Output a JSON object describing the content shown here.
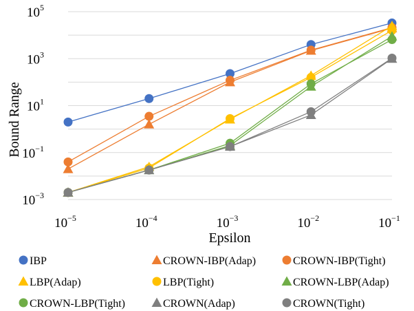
{
  "chart_data": {
    "type": "line",
    "title": "",
    "xlabel": "Epsilon",
    "ylabel": "Bound Range",
    "x": [
      1e-05,
      0.0001,
      0.001,
      0.01,
      0.1
    ],
    "x_tick_labels": [
      {
        "base": "10",
        "exp": "−5"
      },
      {
        "base": "10",
        "exp": "−4"
      },
      {
        "base": "10",
        "exp": "−3"
      },
      {
        "base": "10",
        "exp": "−2"
      },
      {
        "base": "10",
        "exp": "−1"
      }
    ],
    "y_tick_labels": [
      {
        "value": 100000,
        "base": "10",
        "exp": "5"
      },
      {
        "value": 1000,
        "base": "10",
        "exp": "3"
      },
      {
        "value": 10,
        "base": "10",
        "exp": "1"
      },
      {
        "value": 0.1,
        "base": "10",
        "exp": "−1"
      },
      {
        "value": 0.001,
        "base": "10",
        "exp": "−3"
      }
    ],
    "x_scale": "log",
    "y_scale": "log",
    "ylim": [
      0.001,
      100000
    ],
    "grid": "horizontal",
    "legend_position": "bottom",
    "series": [
      {
        "name": "IBP",
        "marker": "circle",
        "color": "#4472c4",
        "values": [
          2,
          20,
          230,
          4000,
          33000
        ]
      },
      {
        "name": "CROWN-IBP(Adap)",
        "marker": "triangle",
        "color": "#ed7d31",
        "values": [
          0.02,
          1.6,
          100,
          2200,
          20000
        ]
      },
      {
        "name": "CROWN-IBP(Tight)",
        "marker": "circle",
        "color": "#ed7d31",
        "values": [
          0.04,
          3.5,
          120,
          2300,
          21000
        ]
      },
      {
        "name": "LBP(Adap)",
        "marker": "triangle",
        "color": "#ffc000",
        "values": [
          0.002,
          0.025,
          2.6,
          190,
          25000
        ]
      },
      {
        "name": "LBP(Tight)",
        "marker": "circle",
        "color": "#ffc000",
        "values": [
          0.002,
          0.022,
          2.8,
          160,
          16000
        ]
      },
      {
        "name": "CROWN-LBP(Adap)",
        "marker": "triangle",
        "color": "#70ad47",
        "values": [
          0.002,
          0.018,
          0.2,
          65,
          9000
        ]
      },
      {
        "name": "CROWN-LBP(Tight)",
        "marker": "circle",
        "color": "#70ad47",
        "values": [
          0.002,
          0.018,
          0.25,
          85,
          6500
        ]
      },
      {
        "name": "CROWN(Adap)",
        "marker": "triangle",
        "color": "#7f7f7f",
        "values": [
          0.002,
          0.018,
          0.18,
          4,
          1000
        ]
      },
      {
        "name": "CROWN(Tight)",
        "marker": "circle",
        "color": "#7f7f7f",
        "values": [
          0.002,
          0.018,
          0.18,
          5.5,
          1050
        ]
      }
    ]
  }
}
